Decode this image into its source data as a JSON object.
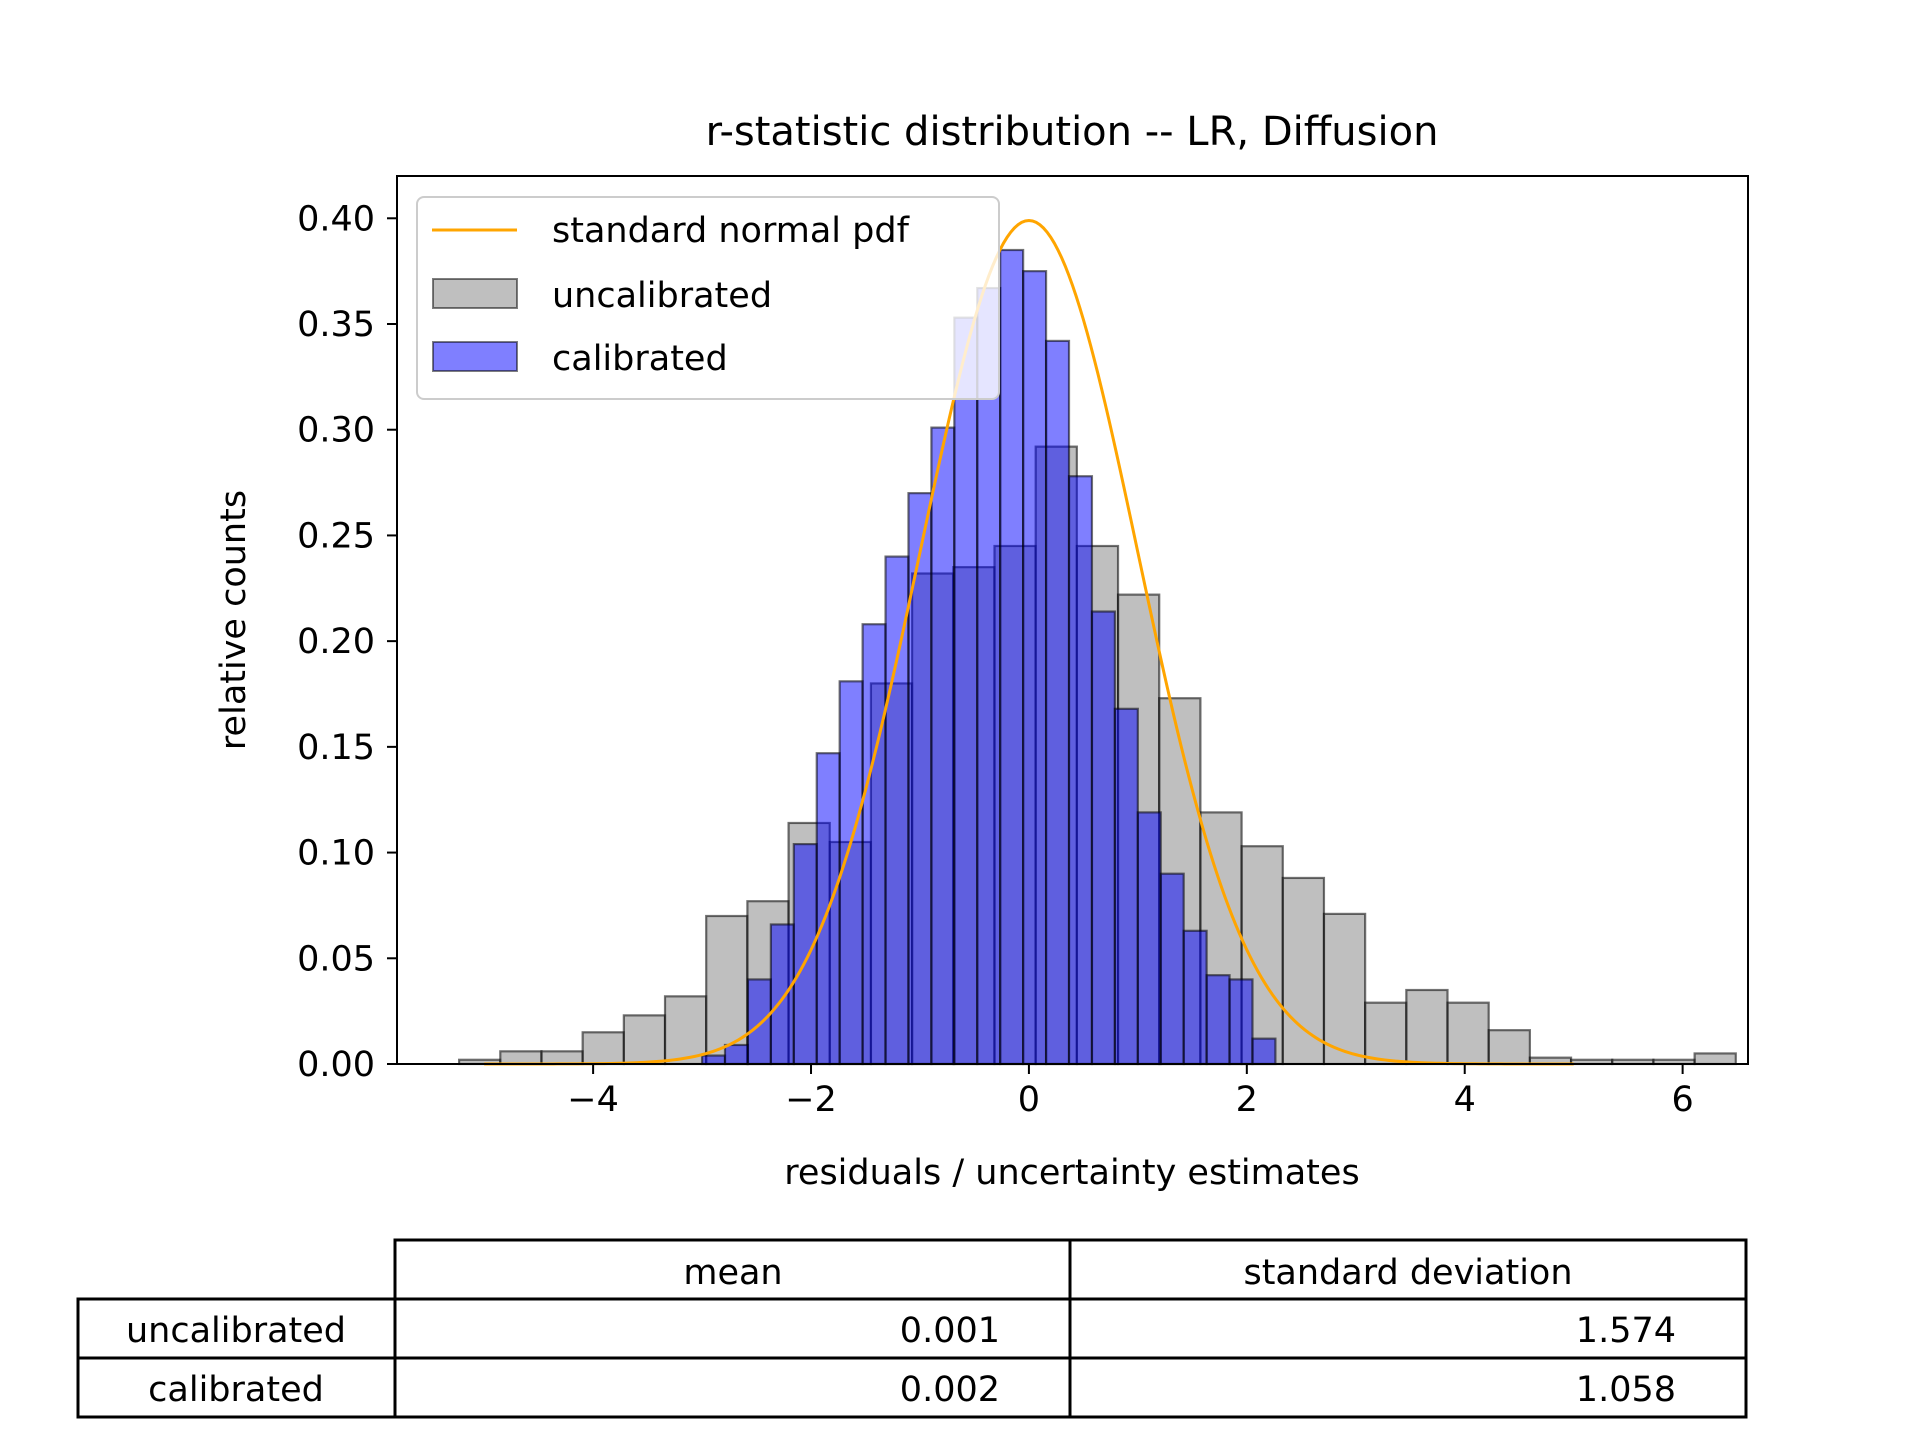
{
  "chart_data": {
    "type": "bar",
    "title": "r-statistic distribution -- LR, Diffusion",
    "xlabel": "residuals / uncertainty estimates",
    "ylabel": "relative counts",
    "xlim": [
      -5.8,
      6.6
    ],
    "ylim": [
      0,
      0.42
    ],
    "xticks": [
      -4,
      -2,
      0,
      2,
      4,
      6
    ],
    "xtick_labels": [
      "−4",
      "−2",
      "0",
      "2",
      "4",
      "6"
    ],
    "yticks": [
      0,
      0.05,
      0.1,
      0.15,
      0.2,
      0.25,
      0.3,
      0.35,
      0.4
    ],
    "ytick_labels": [
      "0.00",
      "0.05",
      "0.10",
      "0.15",
      "0.20",
      "0.25",
      "0.30",
      "0.35",
      "0.40"
    ],
    "grid": false,
    "legend_position": "top-left",
    "series": [
      {
        "name": "uncalibrated",
        "kind": "histogram",
        "color": "#808080",
        "alpha": 0.5,
        "edgecolor": "#000000",
        "bin_start": -5.23,
        "bin_width": 0.378,
        "counts": [
          0.002,
          0.006,
          0.006,
          0.015,
          0.023,
          0.032,
          0.07,
          0.077,
          0.114,
          0.105,
          0.18,
          0.232,
          0.235,
          0.245,
          0.292,
          0.245,
          0.222,
          0.173,
          0.119,
          0.103,
          0.088,
          0.071,
          0.029,
          0.035,
          0.029,
          0.016,
          0.003,
          0.002,
          0.002,
          0.002,
          0.005
        ]
      },
      {
        "name": "calibrated",
        "kind": "histogram",
        "color": "#0000ff",
        "alpha": 0.5,
        "edgecolor": "#000000",
        "bin_start": -3.0,
        "bin_width": 0.2105,
        "counts": [
          0.004,
          0.009,
          0.04,
          0.066,
          0.104,
          0.147,
          0.181,
          0.208,
          0.24,
          0.27,
          0.301,
          0.353,
          0.367,
          0.385,
          0.375,
          0.342,
          0.278,
          0.214,
          0.168,
          0.119,
          0.09,
          0.063,
          0.042,
          0.04,
          0.012
        ]
      },
      {
        "name": "standard normal pdf",
        "kind": "line",
        "color": "#ffa500",
        "x_range": [
          -5,
          5
        ]
      }
    ]
  },
  "table": {
    "columns": [
      "mean",
      "standard deviation"
    ],
    "rows": [
      {
        "label": "uncalibrated",
        "mean": "0.001",
        "std": "1.574"
      },
      {
        "label": "calibrated",
        "mean": "0.002",
        "std": "1.058"
      }
    ]
  }
}
